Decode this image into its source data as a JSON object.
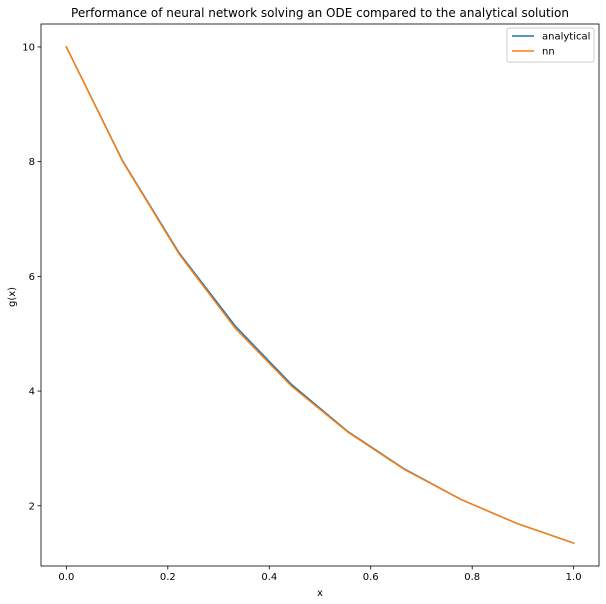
{
  "chart_data": {
    "type": "line",
    "title": "Performance of neural network solving an ODE compared to the analytical solution",
    "xlabel": "x",
    "ylabel": "g(x)",
    "xlim": [
      -0.05,
      1.05
    ],
    "ylim": [
      0.95,
      10.4
    ],
    "xticks": [
      0.0,
      0.2,
      0.4,
      0.6,
      0.8,
      1.0
    ],
    "xtick_labels": [
      "0.0",
      "0.2",
      "0.4",
      "0.6",
      "0.8",
      "1.0"
    ],
    "yticks": [
      2,
      4,
      6,
      8,
      10
    ],
    "ytick_labels": [
      "2",
      "4",
      "6",
      "8",
      "10"
    ],
    "grid": false,
    "legend_position": "top-right",
    "x": [
      0.0,
      0.1111,
      0.2222,
      0.3333,
      0.4444,
      0.5556,
      0.6667,
      0.7778,
      0.8889,
      1.0
    ],
    "series": [
      {
        "name": "analytical",
        "color": "#1f77b4",
        "values": [
          10.0,
          8.01,
          6.41,
          5.13,
          4.11,
          3.29,
          2.64,
          2.11,
          1.69,
          1.35
        ]
      },
      {
        "name": "nn",
        "color": "#ff7f0e",
        "values": [
          10.0,
          8.0,
          6.39,
          5.09,
          4.08,
          3.28,
          2.63,
          2.11,
          1.69,
          1.35
        ]
      }
    ]
  }
}
